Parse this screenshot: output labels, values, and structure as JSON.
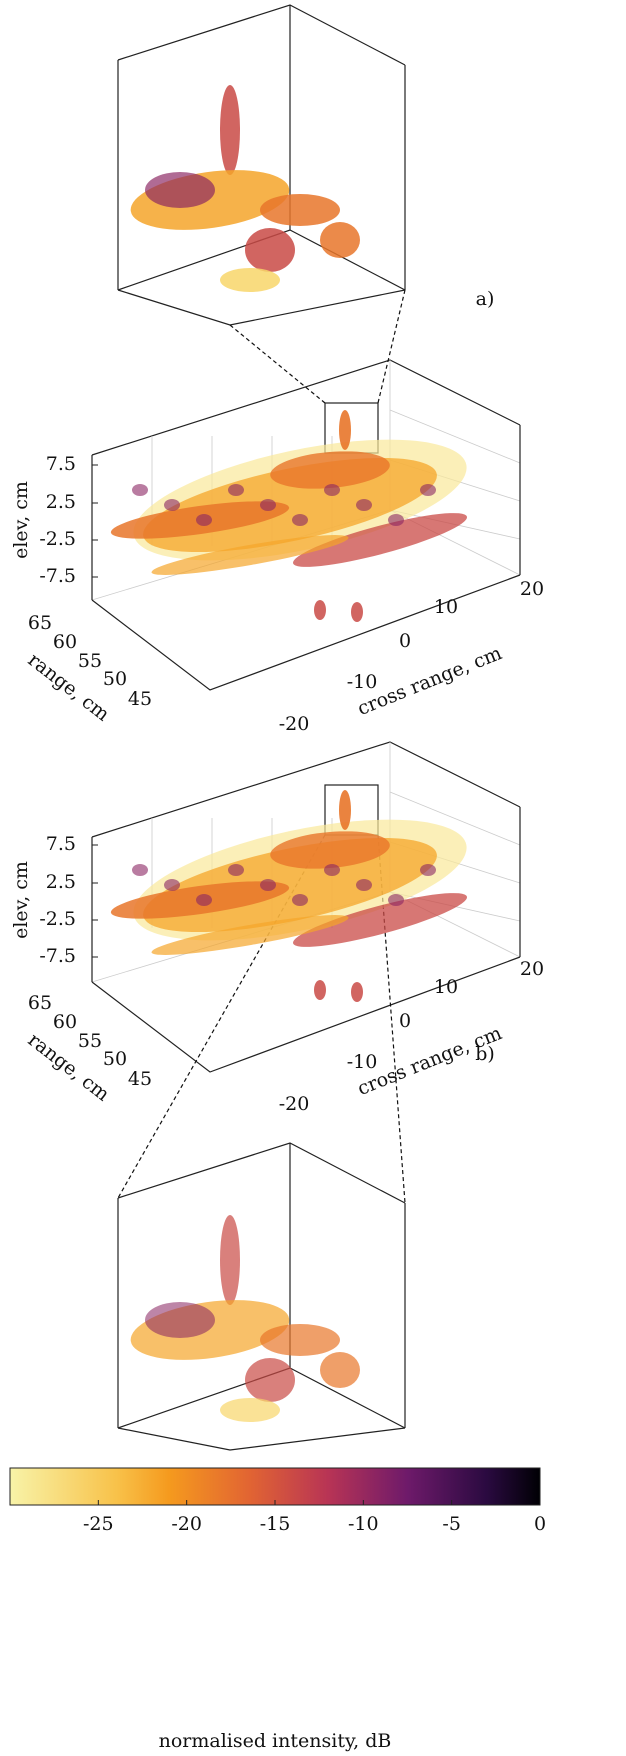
{
  "panels": [
    {
      "label": "a)",
      "axes": {
        "z_label": "elev, cm",
        "z_ticks": [
          7.5,
          2.5,
          -2.5,
          -7.5
        ],
        "y_label": "range, cm",
        "y_ticks": [
          65,
          60,
          55,
          50,
          45
        ],
        "x_label": "cross range, cm",
        "x_ticks": [
          -20,
          -10,
          0,
          10,
          20
        ]
      }
    },
    {
      "label": "b)",
      "axes": {
        "z_label": "elev, cm",
        "z_ticks": [
          7.5,
          2.5,
          -2.5,
          -7.5
        ],
        "y_label": "range, cm",
        "y_ticks": [
          65,
          60,
          55,
          50,
          45
        ],
        "x_label": "cross range, cm",
        "x_ticks": [
          -20,
          -10,
          0,
          10,
          20
        ]
      }
    }
  ],
  "colorbar": {
    "label": "normalised intensity, dB",
    "lim": [
      -30,
      0
    ],
    "ticks": [
      -25,
      -20,
      -15,
      -10,
      -5,
      0
    ]
  }
}
